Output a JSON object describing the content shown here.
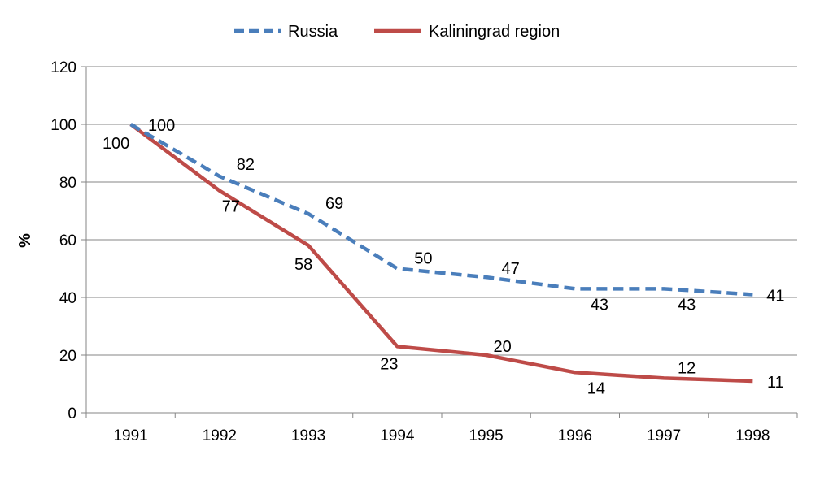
{
  "chart_data": {
    "type": "line",
    "title": "",
    "xlabel": "",
    "ylabel": "%",
    "categories": [
      "1991",
      "1992",
      "1993",
      "1994",
      "1995",
      "1996",
      "1997",
      "1998"
    ],
    "ylim": [
      0,
      120
    ],
    "yticks": [
      "0",
      "20",
      "40",
      "60",
      "80",
      "100",
      "120"
    ],
    "grid": true,
    "legend_position": "top",
    "series": [
      {
        "name": "Russia",
        "values": [
          100,
          82,
          69,
          50,
          47,
          43,
          43,
          41
        ],
        "color": "#4a7ebb",
        "style": "dashed"
      },
      {
        "name": "Kaliningrad region",
        "values": [
          100,
          77,
          58,
          23,
          20,
          14,
          12,
          11
        ],
        "color": "#be4b48",
        "style": "solid"
      }
    ]
  }
}
